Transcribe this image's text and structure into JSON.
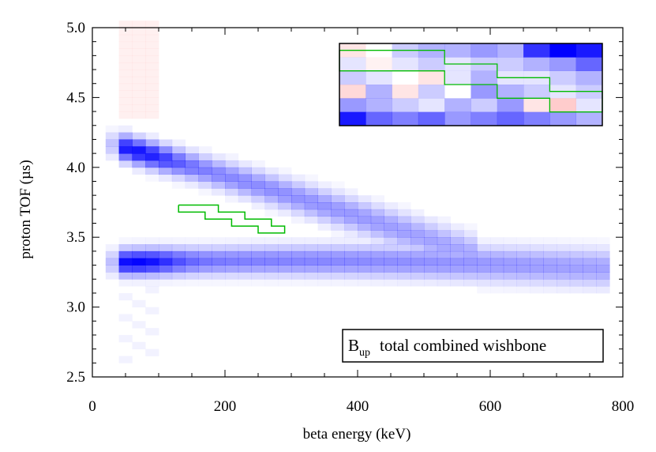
{
  "chart_data": {
    "type": "heatmap",
    "title": "",
    "xlabel": "beta energy (keV)",
    "ylabel": "proton TOF (µs)",
    "xlim": [
      0,
      800
    ],
    "ylim": [
      2.5,
      5.0
    ],
    "xticks": [
      0,
      200,
      400,
      600,
      800
    ],
    "yticks": [
      2.5,
      3.0,
      3.5,
      4.0,
      4.5,
      5.0
    ],
    "xtick_labels": [
      "0",
      "200",
      "400",
      "600",
      "800"
    ],
    "ytick_labels": [
      "2.5",
      "3.0",
      "3.5",
      "4.0",
      "4.5",
      "5.0"
    ],
    "annotation": {
      "main": "B",
      "sub": "up",
      "rest": "total combined wishbone"
    },
    "colors": {
      "positive": "#0000ff",
      "negative": "#ff0000",
      "contour": "#00bb00",
      "background": "#ffffff"
    },
    "bin_size": {
      "energy_keV": 20,
      "tof_us": 0.05
    },
    "bands": [
      {
        "name": "upper branch",
        "start": [
          40,
          4.15
        ],
        "end": [
          560,
          3.4
        ],
        "peak_energy": 70,
        "max_intensity": 0.95
      },
      {
        "name": "lower branch",
        "start": [
          40,
          3.32
        ],
        "end": [
          760,
          3.28
        ],
        "peak_energy": 70,
        "max_intensity": 1.0
      }
    ],
    "contour_region": {
      "energy_keV": [
        130,
        290
      ],
      "tof_us": [
        3.53,
        3.73
      ],
      "staircase": [
        [
          130,
          3.73
        ],
        [
          190,
          3.73
        ],
        [
          190,
          3.68
        ],
        [
          230,
          3.68
        ],
        [
          230,
          3.63
        ],
        [
          270,
          3.63
        ],
        [
          270,
          3.58
        ],
        [
          290,
          3.58
        ],
        [
          290,
          3.53
        ],
        [
          250,
          3.53
        ],
        [
          250,
          3.58
        ],
        [
          210,
          3.58
        ],
        [
          210,
          3.63
        ],
        [
          170,
          3.63
        ],
        [
          170,
          3.68
        ],
        [
          130,
          3.68
        ],
        [
          130,
          3.73
        ]
      ]
    },
    "inset": {
      "description": "zoom of contour region",
      "rows": 6,
      "cols": 10,
      "values": [
        [
          -0.1,
          0.0,
          0.2,
          0.3,
          0.3,
          0.4,
          0.3,
          0.8,
          1.0,
          0.9
        ],
        [
          0.1,
          -0.05,
          0.1,
          0.2,
          0.1,
          0.2,
          0.2,
          0.3,
          0.4,
          0.6
        ],
        [
          0.2,
          0.1,
          0.0,
          -0.1,
          0.1,
          0.3,
          0.1,
          0.1,
          0.2,
          0.3
        ],
        [
          -0.15,
          0.3,
          -0.1,
          0.2,
          0.0,
          0.4,
          0.3,
          0.2,
          0.1,
          0.2
        ],
        [
          0.4,
          0.3,
          0.2,
          0.1,
          0.3,
          0.2,
          0.4,
          -0.1,
          -0.2,
          0.1
        ],
        [
          0.9,
          0.6,
          0.5,
          0.6,
          0.4,
          0.5,
          0.6,
          0.5,
          0.4,
          0.3
        ]
      ],
      "contour_cells": [
        [
          0,
          1
        ],
        [
          4,
          1
        ],
        [
          4,
          2
        ],
        [
          6,
          2
        ],
        [
          6,
          3
        ],
        [
          8,
          3
        ],
        [
          8,
          4
        ],
        [
          10,
          4
        ]
      ]
    }
  }
}
